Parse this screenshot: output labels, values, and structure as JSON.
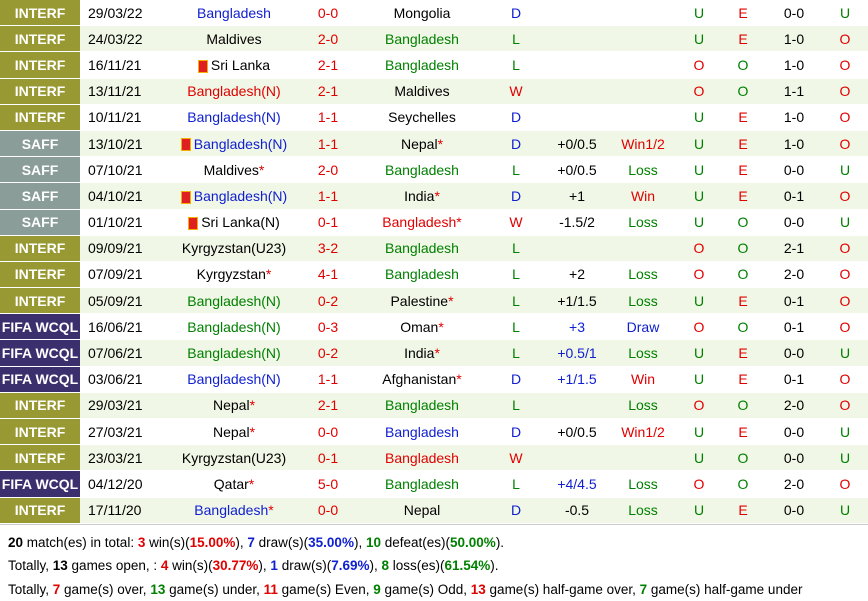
{
  "colors": {
    "interf": "#999933",
    "saff": "#8a9d99",
    "fifa_wcql": "#3c2f6e",
    "team_blue": "#1020d0",
    "team_red": "#e00000",
    "team_green": "#008000",
    "team_black": "#000000",
    "score": "#e00000"
  },
  "matches": [
    {
      "league": "INTERF",
      "date": "29/03/22",
      "home": "Bangladesh",
      "home_color": "blue",
      "home_flag": false,
      "home_star": false,
      "score": "0-0",
      "away": "Mongolia",
      "away_color": "black",
      "away_flag": false,
      "away_star": false,
      "result": "D",
      "result_color": "blue",
      "handicap": "",
      "hcp_color": "black",
      "bet": "",
      "bet_color": "black",
      "ou": "U",
      "ou_color": "green",
      "ht": "E",
      "ht_color": "red",
      "half": "0-0",
      "half_ou": "U",
      "half_ou_color": "green"
    },
    {
      "league": "INTERF",
      "date": "24/03/22",
      "home": "Maldives",
      "home_color": "black",
      "home_flag": false,
      "home_star": false,
      "score": "2-0",
      "away": "Bangladesh",
      "away_color": "green",
      "away_flag": false,
      "away_star": false,
      "result": "L",
      "result_color": "green",
      "handicap": "",
      "hcp_color": "black",
      "bet": "",
      "bet_color": "black",
      "ou": "U",
      "ou_color": "green",
      "ht": "E",
      "ht_color": "red",
      "half": "1-0",
      "half_ou": "O",
      "half_ou_color": "red"
    },
    {
      "league": "INTERF",
      "date": "16/11/21",
      "home": "Sri Lanka",
      "home_color": "black",
      "home_flag": true,
      "home_star": false,
      "score": "2-1",
      "away": "Bangladesh",
      "away_color": "green",
      "away_flag": false,
      "away_star": false,
      "result": "L",
      "result_color": "green",
      "handicap": "",
      "hcp_color": "black",
      "bet": "",
      "bet_color": "black",
      "ou": "O",
      "ou_color": "red",
      "ht": "O",
      "ht_color": "green",
      "half": "1-0",
      "half_ou": "O",
      "half_ou_color": "red"
    },
    {
      "league": "INTERF",
      "date": "13/11/21",
      "home": "Bangladesh(N)",
      "home_color": "red",
      "home_flag": false,
      "home_star": false,
      "score": "2-1",
      "away": "Maldives",
      "away_color": "black",
      "away_flag": false,
      "away_star": false,
      "result": "W",
      "result_color": "red",
      "handicap": "",
      "hcp_color": "black",
      "bet": "",
      "bet_color": "black",
      "ou": "O",
      "ou_color": "red",
      "ht": "O",
      "ht_color": "green",
      "half": "1-1",
      "half_ou": "O",
      "half_ou_color": "red"
    },
    {
      "league": "INTERF",
      "date": "10/11/21",
      "home": "Bangladesh(N)",
      "home_color": "blue",
      "home_flag": false,
      "home_star": false,
      "score": "1-1",
      "away": "Seychelles",
      "away_color": "black",
      "away_flag": false,
      "away_star": false,
      "result": "D",
      "result_color": "blue",
      "handicap": "",
      "hcp_color": "black",
      "bet": "",
      "bet_color": "black",
      "ou": "U",
      "ou_color": "green",
      "ht": "E",
      "ht_color": "red",
      "half": "1-0",
      "half_ou": "O",
      "half_ou_color": "red"
    },
    {
      "league": "SAFF",
      "date": "13/10/21",
      "home": "Bangladesh(N)",
      "home_color": "blue",
      "home_flag": true,
      "home_star": false,
      "score": "1-1",
      "away": "Nepal",
      "away_color": "black",
      "away_flag": false,
      "away_star": true,
      "result": "D",
      "result_color": "blue",
      "handicap": "+0/0.5",
      "hcp_color": "black",
      "bet": "Win1/2",
      "bet_color": "red",
      "ou": "U",
      "ou_color": "green",
      "ht": "E",
      "ht_color": "red",
      "half": "1-0",
      "half_ou": "O",
      "half_ou_color": "red"
    },
    {
      "league": "SAFF",
      "date": "07/10/21",
      "home": "Maldives",
      "home_color": "black",
      "home_flag": false,
      "home_star": true,
      "score": "2-0",
      "away": "Bangladesh",
      "away_color": "green",
      "away_flag": false,
      "away_star": false,
      "result": "L",
      "result_color": "green",
      "handicap": "+0/0.5",
      "hcp_color": "black",
      "bet": "Loss",
      "bet_color": "green",
      "ou": "U",
      "ou_color": "green",
      "ht": "E",
      "ht_color": "red",
      "half": "0-0",
      "half_ou": "U",
      "half_ou_color": "green"
    },
    {
      "league": "SAFF",
      "date": "04/10/21",
      "home": "Bangladesh(N)",
      "home_color": "blue",
      "home_flag": true,
      "home_star": false,
      "score": "1-1",
      "away": "India",
      "away_color": "black",
      "away_flag": false,
      "away_star": true,
      "result": "D",
      "result_color": "blue",
      "handicap": "+1",
      "hcp_color": "black",
      "bet": "Win",
      "bet_color": "red",
      "ou": "U",
      "ou_color": "green",
      "ht": "E",
      "ht_color": "red",
      "half": "0-1",
      "half_ou": "O",
      "half_ou_color": "red"
    },
    {
      "league": "SAFF",
      "date": "01/10/21",
      "home": "Sri Lanka(N)",
      "home_color": "black",
      "home_flag": true,
      "home_star": false,
      "score": "0-1",
      "away": "Bangladesh",
      "away_color": "red",
      "away_flag": false,
      "away_star": true,
      "result": "W",
      "result_color": "red",
      "handicap": "-1.5/2",
      "hcp_color": "black",
      "bet": "Loss",
      "bet_color": "green",
      "ou": "U",
      "ou_color": "green",
      "ht": "O",
      "ht_color": "green",
      "half": "0-0",
      "half_ou": "U",
      "half_ou_color": "green"
    },
    {
      "league": "INTERF",
      "date": "09/09/21",
      "home": "Kyrgyzstan(U23)",
      "home_color": "black",
      "home_flag": false,
      "home_star": false,
      "score": "3-2",
      "away": "Bangladesh",
      "away_color": "green",
      "away_flag": false,
      "away_star": false,
      "result": "L",
      "result_color": "green",
      "handicap": "",
      "hcp_color": "black",
      "bet": "",
      "bet_color": "black",
      "ou": "O",
      "ou_color": "red",
      "ht": "O",
      "ht_color": "green",
      "half": "2-1",
      "half_ou": "O",
      "half_ou_color": "red"
    },
    {
      "league": "INTERF",
      "date": "07/09/21",
      "home": "Kyrgyzstan",
      "home_color": "black",
      "home_flag": false,
      "home_star": true,
      "score": "4-1",
      "away": "Bangladesh",
      "away_color": "green",
      "away_flag": false,
      "away_star": false,
      "result": "L",
      "result_color": "green",
      "handicap": "+2",
      "hcp_color": "black",
      "bet": "Loss",
      "bet_color": "green",
      "ou": "O",
      "ou_color": "red",
      "ht": "O",
      "ht_color": "green",
      "half": "2-0",
      "half_ou": "O",
      "half_ou_color": "red"
    },
    {
      "league": "INTERF",
      "date": "05/09/21",
      "home": "Bangladesh(N)",
      "home_color": "green",
      "home_flag": false,
      "home_star": false,
      "score": "0-2",
      "away": "Palestine",
      "away_color": "black",
      "away_flag": false,
      "away_star": true,
      "result": "L",
      "result_color": "green",
      "handicap": "+1/1.5",
      "hcp_color": "black",
      "bet": "Loss",
      "bet_color": "green",
      "ou": "U",
      "ou_color": "green",
      "ht": "E",
      "ht_color": "red",
      "half": "0-1",
      "half_ou": "O",
      "half_ou_color": "red"
    },
    {
      "league": "FIFA WCQL",
      "date": "16/06/21",
      "home": "Bangladesh(N)",
      "home_color": "green",
      "home_flag": false,
      "home_star": false,
      "score": "0-3",
      "away": "Oman",
      "away_color": "black",
      "away_flag": false,
      "away_star": true,
      "result": "L",
      "result_color": "green",
      "handicap": "+3",
      "hcp_color": "blue",
      "bet": "Draw",
      "bet_color": "blue",
      "ou": "O",
      "ou_color": "red",
      "ht": "O",
      "ht_color": "green",
      "half": "0-1",
      "half_ou": "O",
      "half_ou_color": "red"
    },
    {
      "league": "FIFA WCQL",
      "date": "07/06/21",
      "home": "Bangladesh(N)",
      "home_color": "green",
      "home_flag": false,
      "home_star": false,
      "score": "0-2",
      "away": "India",
      "away_color": "black",
      "away_flag": false,
      "away_star": true,
      "result": "L",
      "result_color": "green",
      "handicap": "+0.5/1",
      "hcp_color": "blue",
      "bet": "Loss",
      "bet_color": "green",
      "ou": "U",
      "ou_color": "green",
      "ht": "E",
      "ht_color": "red",
      "half": "0-0",
      "half_ou": "U",
      "half_ou_color": "green"
    },
    {
      "league": "FIFA WCQL",
      "date": "03/06/21",
      "home": "Bangladesh(N)",
      "home_color": "blue",
      "home_flag": false,
      "home_star": false,
      "score": "1-1",
      "away": "Afghanistan",
      "away_color": "black",
      "away_flag": false,
      "away_star": true,
      "result": "D",
      "result_color": "blue",
      "handicap": "+1/1.5",
      "hcp_color": "blue",
      "bet": "Win",
      "bet_color": "red",
      "ou": "U",
      "ou_color": "green",
      "ht": "E",
      "ht_color": "red",
      "half": "0-1",
      "half_ou": "O",
      "half_ou_color": "red"
    },
    {
      "league": "INTERF",
      "date": "29/03/21",
      "home": "Nepal",
      "home_color": "black",
      "home_flag": false,
      "home_star": true,
      "score": "2-1",
      "away": "Bangladesh",
      "away_color": "green",
      "away_flag": false,
      "away_star": false,
      "result": "L",
      "result_color": "green",
      "handicap": "",
      "hcp_color": "black",
      "bet": "Loss",
      "bet_color": "green",
      "ou": "O",
      "ou_color": "red",
      "ht": "O",
      "ht_color": "green",
      "half": "2-0",
      "half_ou": "O",
      "half_ou_color": "red"
    },
    {
      "league": "INTERF",
      "date": "27/03/21",
      "home": "Nepal",
      "home_color": "black",
      "home_flag": false,
      "home_star": true,
      "score": "0-0",
      "away": "Bangladesh",
      "away_color": "blue",
      "away_flag": false,
      "away_star": false,
      "result": "D",
      "result_color": "blue",
      "handicap": "+0/0.5",
      "hcp_color": "black",
      "bet": "Win1/2",
      "bet_color": "red",
      "ou": "U",
      "ou_color": "green",
      "ht": "E",
      "ht_color": "red",
      "half": "0-0",
      "half_ou": "U",
      "half_ou_color": "green"
    },
    {
      "league": "INTERF",
      "date": "23/03/21",
      "home": "Kyrgyzstan(U23)",
      "home_color": "black",
      "home_flag": false,
      "home_star": false,
      "score": "0-1",
      "away": "Bangladesh",
      "away_color": "red",
      "away_flag": false,
      "away_star": false,
      "result": "W",
      "result_color": "red",
      "handicap": "",
      "hcp_color": "black",
      "bet": "",
      "bet_color": "black",
      "ou": "U",
      "ou_color": "green",
      "ht": "O",
      "ht_color": "green",
      "half": "0-0",
      "half_ou": "U",
      "half_ou_color": "green"
    },
    {
      "league": "FIFA WCQL",
      "date": "04/12/20",
      "home": "Qatar",
      "home_color": "black",
      "home_flag": false,
      "home_star": true,
      "score": "5-0",
      "away": "Bangladesh",
      "away_color": "green",
      "away_flag": false,
      "away_star": false,
      "result": "L",
      "result_color": "green",
      "handicap": "+4/4.5",
      "hcp_color": "blue",
      "bet": "Loss",
      "bet_color": "green",
      "ou": "O",
      "ou_color": "red",
      "ht": "O",
      "ht_color": "green",
      "half": "2-0",
      "half_ou": "O",
      "half_ou_color": "red"
    },
    {
      "league": "INTERF",
      "date": "17/11/20",
      "home": "Bangladesh",
      "home_color": "blue",
      "home_flag": false,
      "home_star": true,
      "score": "0-0",
      "away": "Nepal",
      "away_color": "black",
      "away_flag": false,
      "away_star": false,
      "result": "D",
      "result_color": "blue",
      "handicap": "-0.5",
      "hcp_color": "black",
      "bet": "Loss",
      "bet_color": "green",
      "ou": "U",
      "ou_color": "green",
      "ht": "E",
      "ht_color": "red",
      "half": "0-0",
      "half_ou": "U",
      "half_ou_color": "green"
    }
  ],
  "summary": {
    "line1": {
      "matches": "20",
      "t1": " match(es) in total: ",
      "wins": "3",
      "t2": " win(s)(",
      "win_pct": "15.00%",
      "t3": "), ",
      "draws": "7",
      "t4": " draw(s)(",
      "draw_pct": "35.00%",
      "t5": "), ",
      "defeats": "10",
      "t6": " defeat(es)(",
      "defeat_pct": "50.00%",
      "t7": ")."
    },
    "line2": {
      "t0": "Totally, ",
      "open": "13",
      "t1": " games open, : ",
      "wins": "4",
      "t2": " win(s)(",
      "win_pct": "30.77%",
      "t3": "), ",
      "draws": "1",
      "t4": " draw(s)(",
      "draw_pct": "7.69%",
      "t5": "), ",
      "losses": "8",
      "t6": " loss(es)(",
      "loss_pct": "61.54%",
      "t7": ")."
    },
    "line3": {
      "t0": "Totally, ",
      "over": "7",
      "t1": " game(s) over, ",
      "under": "13",
      "t2": " game(s) under, ",
      "even": "11",
      "t3": " game(s) Even, ",
      "odd": "9",
      "t4": " game(s) Odd, ",
      "hg_over": "13",
      "t5": " game(s) half-game over, ",
      "hg_under": "7",
      "t6": " game(s) half-game under"
    }
  }
}
